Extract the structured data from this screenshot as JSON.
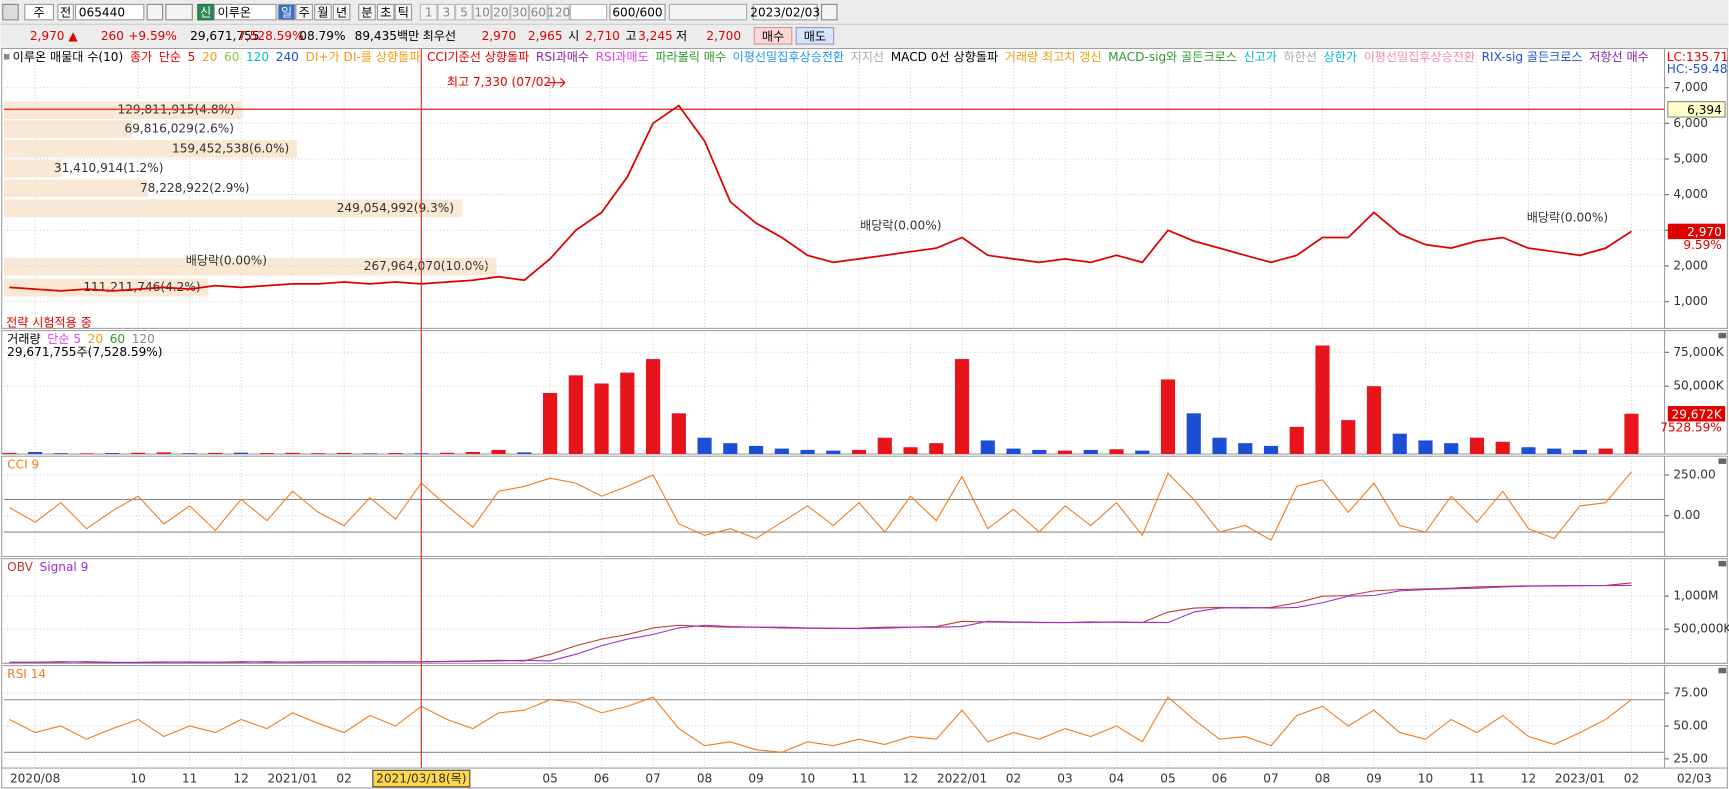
{
  "toolbar": {
    "period_type": "주",
    "prefix": "전",
    "code": "065440",
    "market": "신",
    "name": "이루온",
    "intervals": [
      "일",
      "주",
      "월",
      "년",
      "분",
      "초",
      "틱"
    ],
    "minutes": [
      "1",
      "3",
      "5",
      "10",
      "20",
      "30",
      "60",
      "120"
    ],
    "count": "600/600",
    "date": "2023/02/03"
  },
  "quote": {
    "price": "2,970 ▲",
    "change": "260",
    "change_pct": "+9.59%",
    "volume": "29,671,755",
    "volume_pct": "7,528.59%",
    "turnover": "08.79%",
    "amount": "89,435백만",
    "best_label": "최우선",
    "ask": "2,970",
    "bid": "2,965",
    "open_label": "시",
    "open": "2,710",
    "high_label": "고",
    "high": "3,245",
    "low_label": "저",
    "low": "2,700",
    "buy": "매수",
    "sell": "매도"
  },
  "chart_data": [
    {
      "type": "line",
      "title": "이루온 매물대 수(10)",
      "categories": [
        null,
        "2020/08",
        null,
        null,
        null,
        "10",
        null,
        "11",
        null,
        "12",
        null,
        "2021/01",
        null,
        "02",
        null,
        null,
        "2021/03/18(목)",
        null,
        null,
        null,
        null,
        "05",
        null,
        "06",
        null,
        "07",
        null,
        "08",
        null,
        "09",
        null,
        "10",
        null,
        "11",
        null,
        "12",
        null,
        "2022/01",
        null,
        "02",
        null,
        "03",
        null,
        "04",
        null,
        "05",
        null,
        "06",
        null,
        "07",
        null,
        "08",
        null,
        "09",
        null,
        "10",
        null,
        "11",
        null,
        "12",
        null,
        "2023/01",
        null,
        "02"
      ],
      "x_end_label": "02/03",
      "crosshair": "2021/03/18(목)",
      "series": [
        {
          "name": "종가",
          "color": "#e00000",
          "values": [
            1400,
            1350,
            1300,
            1350,
            1300,
            1350,
            1400,
            1350,
            1450,
            1400,
            1450,
            1500,
            1500,
            1550,
            1500,
            1550,
            1500,
            1550,
            1600,
            1700,
            1600,
            2200,
            3000,
            3500,
            4500,
            6000,
            6500,
            5500,
            3800,
            3200,
            2800,
            2300,
            2100,
            2200,
            2300,
            2400,
            2500,
            2800,
            2300,
            2200,
            2100,
            2200,
            2100,
            2300,
            2100,
            3000,
            2700,
            2500,
            2300,
            2100,
            2300,
            2800,
            2800,
            3500,
            2900,
            2600,
            2500,
            2700,
            2800,
            2500,
            2400,
            2300,
            2500,
            2970
          ]
        }
      ],
      "legend": [
        {
          "text": "단순",
          "color": "#e00000"
        },
        {
          "text": "5",
          "color": "#e00000"
        },
        {
          "text": "20",
          "color": "#f39c12"
        },
        {
          "text": "60",
          "color": "#8bc34a"
        },
        {
          "text": "120",
          "color": "#00bcd4"
        },
        {
          "text": "240",
          "color": "#1e50d2"
        },
        {
          "text": "DI+가 DI-를 상향돌파",
          "color": "#f39c12"
        },
        {
          "text": "CCI기준선 상향돌파",
          "color": "#e00000"
        },
        {
          "text": "RSI과매수",
          "color": "#8e24aa"
        },
        {
          "text": "RSI과매도",
          "color": "#e040fb"
        },
        {
          "text": "파라볼릭 매수",
          "color": "#2e9b2e"
        },
        {
          "text": "이평선밀집후상승전환",
          "color": "#2196f3"
        },
        {
          "text": "지지선",
          "color": "#aaaaaa"
        },
        {
          "text": "MACD 0선 상향돌파",
          "color": "#000000"
        },
        {
          "text": "거래량 최고치 갱신",
          "color": "#f39c12"
        },
        {
          "text": "MACD-sig와 골든크로스",
          "color": "#2e9b2e"
        },
        {
          "text": "신고가",
          "color": "#00bcd4"
        },
        {
          "text": "하한선",
          "color": "#aaaaaa"
        },
        {
          "text": "상한가",
          "color": "#00bcd4"
        },
        {
          "text": "이평선밀집후상승전환",
          "color": "#f48fb1"
        },
        {
          "text": "RIX-sig 골든크로스",
          "color": "#1e50d2"
        },
        {
          "text": "저항선 매수",
          "color": "#8e24aa"
        }
      ],
      "indicator_lc": "LC:135.71",
      "indicator_hc": "HC:-59.48",
      "ylim": [
        250,
        8100
      ],
      "yticks": [
        {
          "value": 1000,
          "label": "1,000"
        },
        {
          "value": 2000,
          "label": "2,000"
        },
        {
          "value": 3000,
          "label": "3,000"
        },
        {
          "value": 4000,
          "label": "4,000"
        },
        {
          "value": 5000,
          "label": "5,000"
        },
        {
          "value": 6000,
          "label": "6,000"
        },
        {
          "value": 7000,
          "label": "7,000"
        }
      ],
      "ref_line": {
        "value": 6394,
        "label": "6,394",
        "color": "#ff3030"
      },
      "last_label": "2,970",
      "last_change": "9.59%",
      "volume_profile": [
        {
          "value": 129811915,
          "label": "129,811,915(4.8%)"
        },
        {
          "value": 69816029,
          "label": "69,816,029(2.6%)"
        },
        {
          "value": 159452538,
          "label": "159,452,538(6.0%)"
        },
        {
          "value": 31410914,
          "label": "31,410,914(1.2%)"
        },
        {
          "value": 78228922,
          "label": "78,228,922(2.9%)"
        },
        {
          "value": 249054992,
          "label": "249,054,992(9.3%)"
        },
        {
          "value": 267964070,
          "label": "267,964,070(10.0%)"
        },
        {
          "value": 111211746,
          "label": "111,211,746(4.2%)"
        }
      ],
      "profile_color": "#f8e8d4",
      "annotations": [
        {
          "text": "최고 7,330 (07/02)",
          "color": "#e00000"
        },
        {
          "text": "배당락(0.00%)",
          "color": "#333333"
        },
        {
          "text": "배당락(0.00%)",
          "color": "#333333"
        },
        {
          "text": "배당락(0.00%)",
          "color": "#333333"
        },
        {
          "text": "전략 시험적용 중",
          "color": "#e00000"
        }
      ],
      "grid": true
    },
    {
      "type": "bar",
      "title": "거래량",
      "legend": [
        {
          "text": "단순 5",
          "color": "#e040fb"
        },
        {
          "text": "20",
          "color": "#f39c12"
        },
        {
          "text": "60",
          "color": "#2e9b2e"
        },
        {
          "text": "120",
          "color": "#888888"
        }
      ],
      "summary": "29,671,755주(7,528.59%)",
      "color": "#e8141b",
      "down_color": "#1c4fd6",
      "values": [
        800,
        1500,
        600,
        500,
        700,
        900,
        1200,
        600,
        800,
        1000,
        700,
        900,
        600,
        800,
        500,
        700,
        600,
        900,
        1500,
        3000,
        1200,
        45000,
        58000,
        52000,
        60000,
        70000,
        30000,
        12000,
        8000,
        6000,
        4000,
        3000,
        2500,
        3000,
        12000,
        5000,
        8000,
        70000,
        10000,
        4000,
        3000,
        2500,
        3000,
        3500,
        2500,
        55000,
        30000,
        12000,
        8000,
        6000,
        20000,
        80000,
        25000,
        50000,
        15000,
        10000,
        8000,
        12000,
        9000,
        5000,
        4000,
        3000,
        4000,
        29672
      ],
      "ylim": [
        0,
        91000
      ],
      "yticks": [
        {
          "value": 50000,
          "label": "50,000K"
        },
        {
          "value": 75000,
          "label": "75,000K"
        }
      ],
      "last_label": "29,672K",
      "last_change": "7528.59%",
      "grid": true
    },
    {
      "type": "line",
      "series": [
        {
          "name": "CCI 9",
          "color": "#f07c1e",
          "values": [
            50,
            -40,
            80,
            -80,
            30,
            120,
            -50,
            60,
            -90,
            100,
            -30,
            150,
            20,
            -60,
            110,
            -20,
            200,
            60,
            -70,
            150,
            180,
            230,
            200,
            120,
            180,
            250,
            -50,
            -120,
            -80,
            -140,
            -40,
            60,
            -60,
            80,
            -100,
            120,
            -30,
            240,
            -80,
            40,
            -100,
            60,
            -60,
            80,
            -120,
            260,
            100,
            -100,
            -60,
            -150,
            180,
            220,
            20,
            200,
            -60,
            -100,
            120,
            -40,
            150,
            -80,
            -140,
            60,
            80,
            270
          ]
        }
      ],
      "levels": [
        100,
        -100
      ],
      "ylim": [
        -250,
        365
      ],
      "yticks": [
        {
          "value": 250,
          "label": "250.00"
        },
        {
          "value": 0,
          "label": "0.00"
        }
      ],
      "grid": true
    },
    {
      "type": "line",
      "series": [
        {
          "name": "OBV",
          "color": "#c0392b",
          "values": [
            0,
            0,
            10000,
            0,
            -5000,
            0,
            5000,
            0,
            0,
            10000,
            0,
            5000,
            10000,
            5000,
            10000,
            5000,
            10000,
            15000,
            20000,
            30000,
            20000,
            120000,
            250000,
            350000,
            420000,
            520000,
            560000,
            540000,
            530000,
            530000,
            520000,
            515000,
            510000,
            515000,
            530000,
            530000,
            540000,
            620000,
            610000,
            605000,
            600000,
            600000,
            610000,
            605000,
            600000,
            760000,
            820000,
            830000,
            820000,
            830000,
            900000,
            1000000,
            1010000,
            1080000,
            1100000,
            1110000,
            1120000,
            1140000,
            1150000,
            1155000,
            1158000,
            1160000,
            1162000,
            1200000
          ]
        },
        {
          "name": "Signal 9",
          "color": "#9b30d0",
          "values": [
            0,
            0,
            0,
            10000,
            0,
            -5000,
            0,
            5000,
            0,
            0,
            10000,
            0,
            5000,
            10000,
            5000,
            10000,
            5000,
            10000,
            15000,
            20000,
            30000,
            20000,
            120000,
            250000,
            350000,
            420000,
            520000,
            560000,
            540000,
            530000,
            530000,
            520000,
            515000,
            510000,
            515000,
            530000,
            530000,
            540000,
            620000,
            610000,
            605000,
            600000,
            600000,
            610000,
            605000,
            600000,
            760000,
            820000,
            830000,
            820000,
            830000,
            900000,
            1000000,
            1010000,
            1080000,
            1100000,
            1110000,
            1120000,
            1140000,
            1150000,
            1155000,
            1158000,
            1160000,
            1162000
          ]
        }
      ],
      "ylim": [
        -17000,
        1567000
      ],
      "yticks": [
        {
          "value": 500000,
          "label": "500,000K"
        },
        {
          "value": 1000000,
          "label": "1,000M"
        }
      ],
      "grid": true
    },
    {
      "type": "line",
      "series": [
        {
          "name": "RSI 14",
          "color": "#f07c1e",
          "values": [
            55,
            45,
            50,
            40,
            48,
            55,
            42,
            50,
            45,
            55,
            48,
            60,
            52,
            45,
            58,
            50,
            65,
            55,
            48,
            60,
            62,
            70,
            68,
            60,
            65,
            72,
            48,
            35,
            38,
            32,
            30,
            38,
            35,
            40,
            36,
            42,
            40,
            62,
            38,
            45,
            40,
            48,
            42,
            50,
            38,
            72,
            55,
            40,
            42,
            35,
            58,
            65,
            50,
            62,
            45,
            40,
            55,
            45,
            58,
            42,
            36,
            45,
            55,
            70
          ]
        }
      ],
      "levels": [
        70,
        30
      ],
      "ylim": [
        18,
        96
      ],
      "yticks": [
        {
          "value": 25,
          "label": "25.00"
        },
        {
          "value": 50,
          "label": "50.00"
        },
        {
          "value": 75,
          "label": "75.00"
        }
      ],
      "grid": true
    }
  ]
}
